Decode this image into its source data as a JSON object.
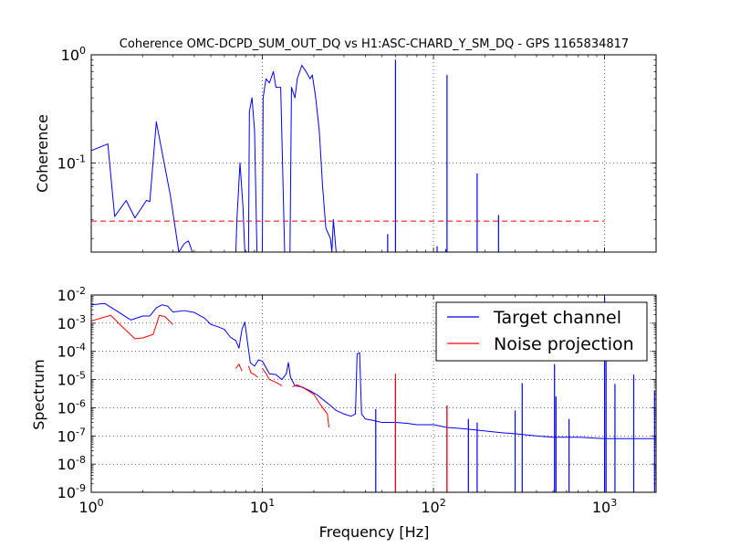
{
  "chart_data": [
    {
      "type": "line",
      "title": "Coherence OMC-DCPD_SUM_OUT_DQ vs H1:ASC-CHARD_Y_SM_DQ - GPS 1165834817",
      "ylabel": "Coherence",
      "xlabel": "",
      "xscale": "log",
      "yscale": "log",
      "xlim": [
        1,
        2000
      ],
      "ylim": [
        0.015,
        1.0
      ],
      "grid": true,
      "x_ticks": [
        {
          "value": 1,
          "base": "10",
          "exp": "0"
        },
        {
          "value": 10,
          "base": "10",
          "exp": "1"
        },
        {
          "value": 100,
          "base": "10",
          "exp": "2"
        },
        {
          "value": 1000,
          "base": "10",
          "exp": "3"
        }
      ],
      "y_ticks": [
        {
          "value": 1.0,
          "base": "10",
          "exp": "0"
        },
        {
          "value": 0.1,
          "base": "10",
          "exp": "-1"
        }
      ],
      "series": [
        {
          "color": "#0000ff",
          "points": [
            [
              1.0,
              0.13
            ],
            [
              1.25,
              0.15
            ],
            [
              1.37,
              0.032
            ],
            [
              1.6,
              0.045
            ],
            [
              1.8,
              0.031
            ],
            [
              2.1,
              0.045
            ],
            [
              2.2,
              0.044
            ],
            [
              2.4,
              0.24
            ],
            [
              2.9,
              0.05
            ],
            [
              3.25,
              0.015
            ],
            [
              3.5,
              0.018
            ],
            [
              3.7,
              0.019
            ],
            [
              3.9,
              0.015
            ],
            [
              7.0,
              0.015
            ],
            [
              7.1,
              0.03
            ],
            [
              7.4,
              0.1
            ],
            [
              7.7,
              0.04
            ],
            [
              7.9,
              0.015
            ],
            [
              8.3,
              0.015
            ],
            [
              8.4,
              0.3
            ],
            [
              8.7,
              0.4
            ],
            [
              9.0,
              0.2
            ],
            [
              9.3,
              0.015
            ],
            [
              10.0,
              0.015
            ],
            [
              10.1,
              0.4
            ],
            [
              10.5,
              0.6
            ],
            [
              11.0,
              0.55
            ],
            [
              11.6,
              0.7
            ],
            [
              12.0,
              0.5
            ],
            [
              12.8,
              0.5
            ],
            [
              13.5,
              0.015
            ],
            [
              14.5,
              0.015
            ],
            [
              14.8,
              0.5
            ],
            [
              15.5,
              0.4
            ],
            [
              16.0,
              0.6
            ],
            [
              17.0,
              0.8
            ],
            [
              18.0,
              0.7
            ],
            [
              19.0,
              0.6
            ],
            [
              19.6,
              0.65
            ],
            [
              20.5,
              0.4
            ],
            [
              21.5,
              0.2
            ],
            [
              22.5,
              0.06
            ],
            [
              23.5,
              0.025
            ],
            [
              25.0,
              0.02
            ],
            [
              25.5,
              0.015
            ],
            [
              26.0,
              0.03
            ],
            [
              27.0,
              0.015
            ]
          ],
          "spikes": [
            [
              54,
              0.022
            ],
            [
              60,
              0.9
            ],
            [
              105,
              0.017
            ],
            [
              118,
              0.016
            ],
            [
              120,
              0.65
            ],
            [
              180,
              0.08
            ],
            [
              240,
              0.033
            ]
          ]
        },
        {
          "color": "#ff0000",
          "style": "dashed",
          "points": [
            [
              1.0,
              0.029
            ],
            [
              1000.0,
              0.029
            ]
          ]
        }
      ]
    },
    {
      "type": "line",
      "title": "",
      "xlabel": "Frequency [Hz]",
      "ylabel": "Spectrum",
      "xscale": "log",
      "yscale": "log",
      "xlim": [
        1,
        2000
      ],
      "ylim": [
        1e-09,
        0.01
      ],
      "grid": true,
      "legend": "top-right",
      "x_ticks": [
        {
          "value": 1,
          "base": "10",
          "exp": "0"
        },
        {
          "value": 10,
          "base": "10",
          "exp": "1"
        },
        {
          "value": 100,
          "base": "10",
          "exp": "2"
        },
        {
          "value": 1000,
          "base": "10",
          "exp": "3"
        }
      ],
      "y_ticks": [
        {
          "value": 0.01,
          "base": "10",
          "exp": "-2"
        },
        {
          "value": 0.001,
          "base": "10",
          "exp": "-3"
        },
        {
          "value": 0.0001,
          "base": "10",
          "exp": "-4"
        },
        {
          "value": 1e-05,
          "base": "10",
          "exp": "-5"
        },
        {
          "value": 1e-06,
          "base": "10",
          "exp": "-6"
        },
        {
          "value": 1e-07,
          "base": "10",
          "exp": "-7"
        },
        {
          "value": 1e-08,
          "base": "10",
          "exp": "-8"
        },
        {
          "value": 1e-09,
          "base": "10",
          "exp": "-9"
        }
      ],
      "series": [
        {
          "name": "Target channel",
          "color": "#0000ff",
          "points": [
            [
              1.0,
              0.0045
            ],
            [
              1.2,
              0.005
            ],
            [
              1.4,
              0.0028
            ],
            [
              1.7,
              0.0013
            ],
            [
              2.0,
              0.0018
            ],
            [
              2.2,
              0.0018
            ],
            [
              2.4,
              0.0035
            ],
            [
              2.6,
              0.0045
            ],
            [
              2.8,
              0.004
            ],
            [
              3.0,
              0.0025
            ],
            [
              3.5,
              0.0028
            ],
            [
              4.0,
              0.0024
            ],
            [
              4.6,
              0.0015
            ],
            [
              5.0,
              0.0009
            ],
            [
              5.5,
              0.00075
            ],
            [
              6.0,
              0.0006
            ],
            [
              6.5,
              0.00032
            ],
            [
              7.0,
              0.00024
            ],
            [
              7.3,
              0.00013
            ],
            [
              7.6,
              0.0006
            ],
            [
              7.9,
              0.0011
            ],
            [
              8.2,
              0.0002
            ],
            [
              8.5,
              4e-05
            ],
            [
              9.0,
              3e-05
            ],
            [
              9.5,
              5e-05
            ],
            [
              10.0,
              4.5e-05
            ],
            [
              11.0,
              1.6e-05
            ],
            [
              12.0,
              1.5e-05
            ],
            [
              13.0,
              1e-05
            ],
            [
              13.8,
              1.6e-05
            ],
            [
              14.2,
              4e-05
            ],
            [
              14.6,
              1.2e-05
            ],
            [
              15.5,
              6e-06
            ],
            [
              17.0,
              5.5e-06
            ],
            [
              19.0,
              4e-06
            ],
            [
              21.0,
              2.8e-06
            ],
            [
              23.0,
              1.8e-06
            ],
            [
              25.0,
              1.2e-06
            ],
            [
              27.0,
              8e-07
            ],
            [
              30.0,
              6e-07
            ],
            [
              33.0,
              5e-07
            ],
            [
              35.0,
              6e-07
            ],
            [
              35.8,
              8e-05
            ],
            [
              37.0,
              9e-05
            ],
            [
              38.0,
              6e-07
            ],
            [
              40.0,
              4e-07
            ],
            [
              45.0,
              3.5e-07
            ],
            [
              50.0,
              3e-07
            ],
            [
              55.0,
              3e-07
            ],
            [
              60.0,
              3e-07
            ],
            [
              70.0,
              2.8e-07
            ],
            [
              80.0,
              2.5e-07
            ],
            [
              100.0,
              2.5e-07
            ],
            [
              120.0,
              2e-07
            ],
            [
              150.0,
              1.8e-07
            ],
            [
              200.0,
              1.5e-07
            ],
            [
              250.0,
              1.3e-07
            ],
            [
              300.0,
              1.2e-07
            ],
            [
              400.0,
              1e-07
            ],
            [
              500.0,
              9e-08
            ],
            [
              700.0,
              9e-08
            ],
            [
              1000.0,
              8e-08
            ],
            [
              1500.0,
              8e-08
            ],
            [
              2000.0,
              8e-08
            ]
          ],
          "spikes": [
            [
              46,
              9e-07
            ],
            [
              60,
              9e-06
            ],
            [
              120,
              1.2e-06
            ],
            [
              160,
              4e-07
            ],
            [
              180,
              3e-07
            ],
            [
              300,
              8e-07
            ],
            [
              330,
              7.5e-06
            ],
            [
              510,
              3.5e-05
            ],
            [
              520,
              2.5e-06
            ],
            [
              620,
              4e-07
            ],
            [
              1000,
              0.0085
            ],
            [
              1020,
              0.0009
            ],
            [
              1150,
              7e-06
            ],
            [
              1480,
              1.5e-05
            ],
            [
              1960,
              4e-06
            ]
          ]
        },
        {
          "name": "Noise projection",
          "color": "#ff0000",
          "segments": [
            [
              [
                1.0,
                0.0012
              ],
              [
                1.3,
                0.0019
              ],
              [
                1.5,
                0.0008
              ],
              [
                1.8,
                0.00028
              ],
              [
                2.0,
                0.0003
              ],
              [
                2.3,
                0.0004
              ],
              [
                2.5,
                0.0019
              ],
              [
                2.7,
                0.0017
              ],
              [
                3.0,
                0.0009
              ]
            ],
            [
              [
                7.0,
                2.5e-05
              ],
              [
                7.3,
                3.5e-05
              ],
              [
                7.6,
                2e-05
              ]
            ],
            [
              [
                8.3,
                3e-05
              ],
              [
                8.6,
                1.7e-05
              ],
              [
                9.0,
                1.5e-05
              ],
              [
                9.4,
                1.2e-05
              ]
            ],
            [
              [
                10.0,
                2.5e-05
              ],
              [
                10.6,
                1.5e-05
              ],
              [
                11.0,
                1e-05
              ],
              [
                12.0,
                8e-06
              ],
              [
                13.0,
                6e-06
              ]
            ],
            [
              [
                15.0,
                5.5e-06
              ],
              [
                16.0,
                6.5e-06
              ],
              [
                18.0,
                4.5e-06
              ],
              [
                20.0,
                3e-06
              ],
              [
                22.0,
                1.2e-06
              ],
              [
                24.0,
                6e-07
              ],
              [
                24.5,
                2e-07
              ]
            ]
          ],
          "spikes": [
            [
              60,
              1.6e-05
            ],
            [
              120,
              1.2e-06
            ]
          ]
        }
      ]
    }
  ]
}
